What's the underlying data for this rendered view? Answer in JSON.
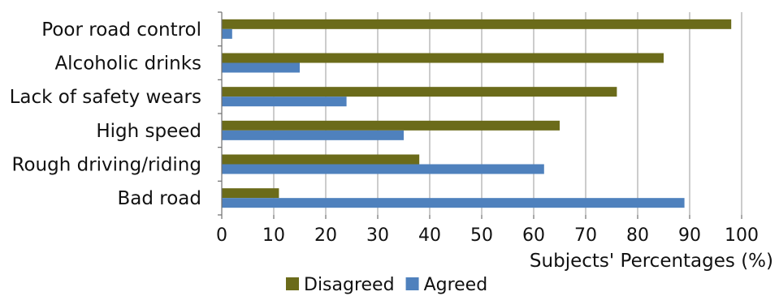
{
  "chart_data": {
    "type": "bar",
    "orientation": "horizontal",
    "categories": [
      "Poor road control",
      "Alcoholic drinks",
      "Lack of safety wears",
      "High speed",
      "Rough driving/riding",
      "Bad road"
    ],
    "series": [
      {
        "name": "Disagreed",
        "color": "#6b6b1a",
        "values": [
          98,
          85,
          76,
          65,
          38,
          11
        ]
      },
      {
        "name": "Agreed",
        "color": "#4f81bd",
        "values": [
          2,
          15,
          24,
          35,
          62,
          89
        ]
      }
    ],
    "xlabel": "Subjects' Percentages (%)",
    "ylabel": "",
    "xlim": [
      0,
      100
    ],
    "xticks": [
      0,
      10,
      20,
      30,
      40,
      50,
      60,
      70,
      80,
      90,
      100
    ],
    "grid": true,
    "legend_position": "bottom"
  }
}
